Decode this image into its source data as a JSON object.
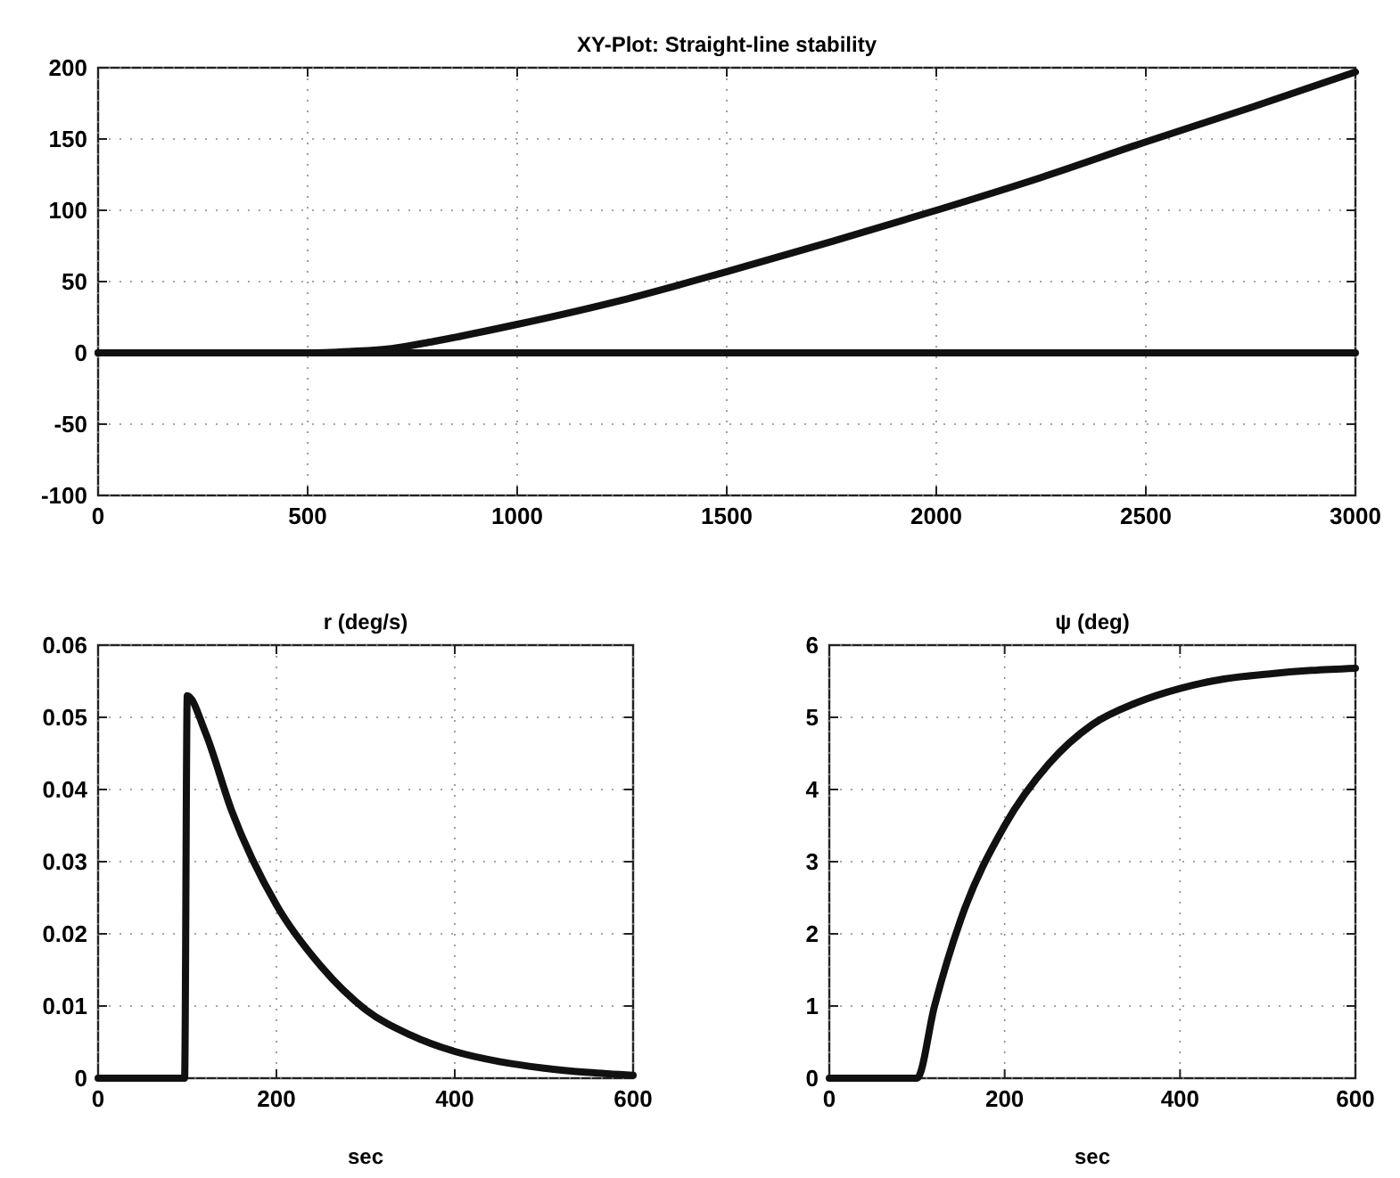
{
  "chart_data": [
    {
      "type": "line",
      "title": "XY-Plot: Straight-line stability",
      "xlim": [
        0,
        3000
      ],
      "ylim": [
        -100,
        200
      ],
      "xticks": [
        0,
        500,
        1000,
        1500,
        2000,
        2500,
        3000
      ],
      "yticks": [
        -100,
        -50,
        0,
        50,
        100,
        150,
        200
      ],
      "grid": true,
      "series": [
        {
          "color": "#111111",
          "x": [
            0,
            500,
            600,
            700,
            800,
            1000,
            1250,
            1500,
            1750,
            2000,
            2250,
            2500,
            2750,
            3000
          ],
          "values": [
            0,
            0,
            1,
            3,
            8,
            20,
            37,
            57,
            78,
            100,
            123,
            148,
            172,
            197
          ]
        },
        {
          "color": "#111111",
          "x": [
            0,
            3000
          ],
          "values": [
            0,
            0
          ]
        }
      ]
    },
    {
      "type": "line",
      "title": "r (deg/s)",
      "xlabel": "sec",
      "xlim": [
        0,
        600
      ],
      "ylim": [
        0,
        0.06
      ],
      "xticks": [
        0,
        200,
        400,
        600
      ],
      "yticks": [
        0,
        0.01,
        0.02,
        0.03,
        0.04,
        0.05,
        0.06
      ],
      "grid": true,
      "series": [
        {
          "color": "#111111",
          "x": [
            0,
            97,
            100,
            120,
            150,
            200,
            250,
            300,
            350,
            400,
            450,
            500,
            550,
            600
          ],
          "values": [
            0,
            0,
            0.053,
            0.048,
            0.037,
            0.024,
            0.0155,
            0.0095,
            0.006,
            0.0037,
            0.0023,
            0.0014,
            0.0008,
            0.0004
          ]
        }
      ]
    },
    {
      "type": "line",
      "title": "ψ (deg)",
      "xlabel": "sec",
      "xlim": [
        0,
        600
      ],
      "ylim": [
        0,
        6
      ],
      "xticks": [
        0,
        200,
        400,
        600
      ],
      "yticks": [
        0,
        1,
        2,
        3,
        4,
        5,
        6
      ],
      "grid": true,
      "series": [
        {
          "color": "#111111",
          "x": [
            0,
            100,
            120,
            150,
            200,
            250,
            300,
            350,
            400,
            450,
            500,
            550,
            600
          ],
          "values": [
            0,
            0,
            1,
            2.2,
            3.5,
            4.35,
            4.9,
            5.2,
            5.4,
            5.53,
            5.6,
            5.65,
            5.68
          ]
        }
      ]
    }
  ]
}
